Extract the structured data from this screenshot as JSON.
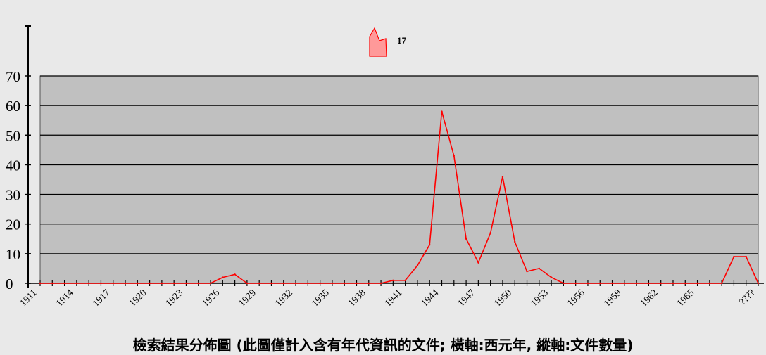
{
  "chart_data": {
    "type": "line",
    "title": "檢索結果分佈圖 (此圖僅計入含有年代資訊的文件; 橫軸:西元年, 縱軸:文件數量)",
    "xlabel": "西元年",
    "ylabel": "文件數量",
    "ylim": [
      0,
      70
    ],
    "yticks": [
      "0",
      "10",
      "20",
      "30",
      "40",
      "50",
      "60",
      "70"
    ],
    "xtick_labels": [
      "1911",
      "1914",
      "1917",
      "1920",
      "1923",
      "1926",
      "1929",
      "1932",
      "1935",
      "1938",
      "1941",
      "1944",
      "1947",
      "1950",
      "1953",
      "1956",
      "1959",
      "1962",
      "1965",
      "????"
    ],
    "grid": true,
    "legend": {
      "position": "top-center",
      "label": "17"
    },
    "colors": {
      "line": "#ff0000",
      "plot_bg": "#c0c0c0",
      "page_bg": "#e9e9e9",
      "legend_fill": "#ff9999"
    },
    "series": [
      {
        "name": "17",
        "points": [
          {
            "x": "1911",
            "y": 0
          },
          {
            "x": "1912",
            "y": 0
          },
          {
            "x": "1913",
            "y": 0
          },
          {
            "x": "1914",
            "y": 0
          },
          {
            "x": "1915",
            "y": 0
          },
          {
            "x": "1916",
            "y": 0
          },
          {
            "x": "1917",
            "y": 0
          },
          {
            "x": "1918",
            "y": 0
          },
          {
            "x": "1919",
            "y": 0
          },
          {
            "x": "1920",
            "y": 0
          },
          {
            "x": "1921",
            "y": 0
          },
          {
            "x": "1922",
            "y": 0
          },
          {
            "x": "1923",
            "y": 0
          },
          {
            "x": "1924",
            "y": 0
          },
          {
            "x": "1925",
            "y": 0
          },
          {
            "x": "1926",
            "y": 2
          },
          {
            "x": "1927",
            "y": 3
          },
          {
            "x": "1928",
            "y": 0
          },
          {
            "x": "1929",
            "y": 0
          },
          {
            "x": "1930",
            "y": 0
          },
          {
            "x": "1931",
            "y": 0
          },
          {
            "x": "1932",
            "y": 0
          },
          {
            "x": "1933",
            "y": 0
          },
          {
            "x": "1934",
            "y": 0
          },
          {
            "x": "1935",
            "y": 0
          },
          {
            "x": "1936",
            "y": 0
          },
          {
            "x": "1937",
            "y": 0
          },
          {
            "x": "1938",
            "y": 0
          },
          {
            "x": "1939",
            "y": 0
          },
          {
            "x": "1940",
            "y": 1
          },
          {
            "x": "1941",
            "y": 1
          },
          {
            "x": "1942",
            "y": 6
          },
          {
            "x": "1943",
            "y": 13
          },
          {
            "x": "1944",
            "y": 58
          },
          {
            "x": "1945",
            "y": 43
          },
          {
            "x": "1946",
            "y": 15
          },
          {
            "x": "1947",
            "y": 7
          },
          {
            "x": "1948",
            "y": 17
          },
          {
            "x": "1949",
            "y": 36
          },
          {
            "x": "1950",
            "y": 14
          },
          {
            "x": "1951",
            "y": 4
          },
          {
            "x": "1952",
            "y": 5
          },
          {
            "x": "1953",
            "y": 2
          },
          {
            "x": "1954",
            "y": 0
          },
          {
            "x": "1955",
            "y": 0
          },
          {
            "x": "1956",
            "y": 0
          },
          {
            "x": "1957",
            "y": 0
          },
          {
            "x": "1958",
            "y": 0
          },
          {
            "x": "1959",
            "y": 0
          },
          {
            "x": "1960",
            "y": 0
          },
          {
            "x": "1961",
            "y": 0
          },
          {
            "x": "1962",
            "y": 0
          },
          {
            "x": "1963",
            "y": 0
          },
          {
            "x": "1964",
            "y": 0
          },
          {
            "x": "1965",
            "y": 0
          },
          {
            "x": "1966",
            "y": 0
          },
          {
            "x": "1967",
            "y": 0
          },
          {
            "x": "1968",
            "y": 9
          },
          {
            "x": "1969",
            "y": 9
          },
          {
            "x": "????",
            "y": 0
          }
        ]
      }
    ]
  }
}
